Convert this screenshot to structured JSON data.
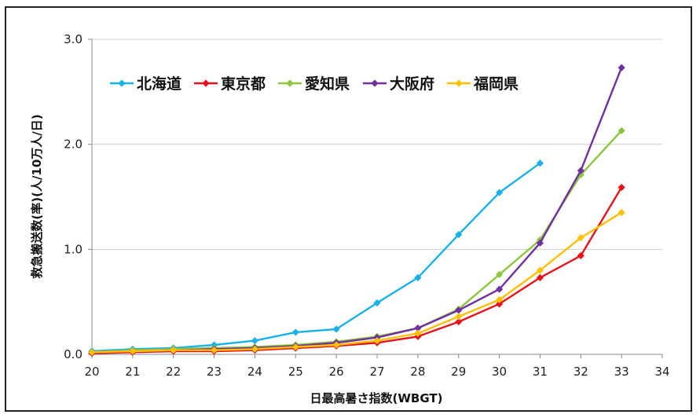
{
  "chart_data": {
    "type": "line",
    "title": "",
    "xlabel": "日最高暑さ指数(WBGT)",
    "ylabel": "救急搬送数(率)(人/10万人/日)",
    "xlim": [
      20,
      34
    ],
    "ylim": [
      0,
      3
    ],
    "x_ticks": [
      "20",
      "21",
      "22",
      "23",
      "24",
      "25",
      "26",
      "27",
      "28",
      "29",
      "30",
      "31",
      "32",
      "33",
      "34"
    ],
    "y_ticks": [
      "0.0",
      "1.0",
      "2.0",
      "3.0"
    ],
    "grid": "horizontal",
    "legend_position": "top-left",
    "series": [
      {
        "name": "北海道",
        "color": "#1ab0e8",
        "x": [
          20,
          21,
          22,
          23,
          24,
          25,
          26,
          27,
          28,
          29,
          30,
          31
        ],
        "values": [
          0.03,
          0.05,
          0.06,
          0.09,
          0.13,
          0.21,
          0.24,
          0.49,
          0.73,
          1.14,
          1.54,
          1.82
        ]
      },
      {
        "name": "東京都",
        "color": "#e8121c",
        "x": [
          20,
          21,
          22,
          23,
          24,
          25,
          26,
          27,
          28,
          29,
          30,
          31,
          32,
          33
        ],
        "values": [
          0.01,
          0.02,
          0.03,
          0.03,
          0.04,
          0.06,
          0.08,
          0.11,
          0.17,
          0.31,
          0.48,
          0.73,
          0.94,
          1.59
        ]
      },
      {
        "name": "愛知県",
        "color": "#8cc63f",
        "x": [
          20,
          21,
          22,
          23,
          24,
          25,
          26,
          27,
          28,
          29,
          30,
          31,
          32,
          33
        ],
        "values": [
          0.02,
          0.04,
          0.05,
          0.06,
          0.07,
          0.09,
          0.12,
          0.17,
          0.25,
          0.43,
          0.76,
          1.09,
          1.71,
          2.13
        ]
      },
      {
        "name": "大阪府",
        "color": "#7030a0",
        "x": [
          20,
          21,
          22,
          23,
          24,
          25,
          26,
          27,
          28,
          29,
          30,
          31,
          32,
          33
        ],
        "values": [
          0.02,
          0.03,
          0.04,
          0.05,
          0.06,
          0.08,
          0.11,
          0.16,
          0.25,
          0.42,
          0.62,
          1.06,
          1.75,
          2.73
        ]
      },
      {
        "name": "福岡県",
        "color": "#ffc000",
        "x": [
          20,
          21,
          22,
          23,
          24,
          25,
          26,
          27,
          28,
          29,
          30,
          31,
          32,
          33
        ],
        "values": [
          0.02,
          0.03,
          0.04,
          0.04,
          0.05,
          0.07,
          0.09,
          0.13,
          0.2,
          0.36,
          0.52,
          0.8,
          1.11,
          1.35
        ]
      }
    ]
  }
}
